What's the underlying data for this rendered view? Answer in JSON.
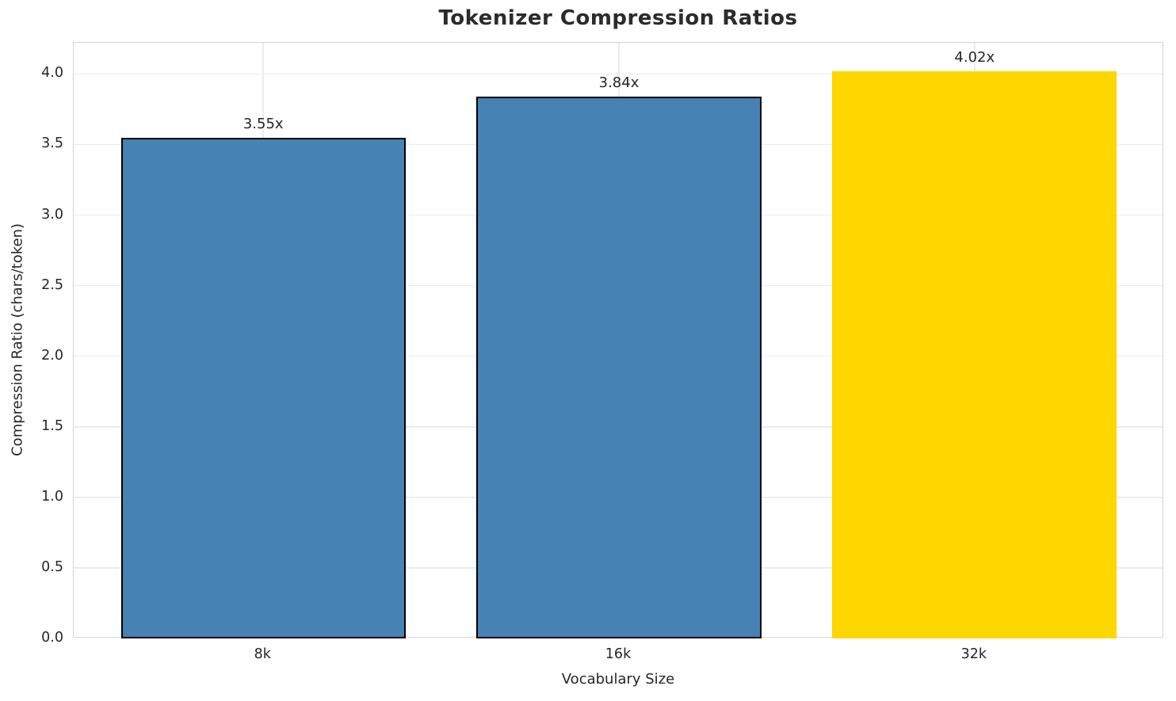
{
  "chart_data": {
    "type": "bar",
    "title": "Tokenizer Compression Ratios",
    "xlabel": "Vocabulary Size",
    "ylabel": "Compression Ratio (chars/token)",
    "categories": [
      "8k",
      "16k",
      "32k"
    ],
    "values": [
      3.55,
      3.84,
      4.02
    ],
    "bar_labels": [
      "3.55x",
      "3.84x",
      "4.02x"
    ],
    "bar_colors": [
      "#4682b4",
      "#4682b4",
      "#ffd700"
    ],
    "bar_edge_colors": [
      "#000000",
      "#000000",
      "none"
    ],
    "ylim": [
      0,
      4.221
    ],
    "yticks": [
      0.0,
      0.5,
      1.0,
      1.5,
      2.0,
      2.5,
      3.0,
      3.5,
      4.0
    ],
    "ytick_labels": [
      "0.0",
      "0.5",
      "1.0",
      "1.5",
      "2.0",
      "2.5",
      "3.0",
      "3.5",
      "4.0"
    ],
    "grid": true,
    "grid_color": "#ececec",
    "spine_color": "#d4d4d4",
    "text_color": "#262626",
    "background_color": "#ffffff",
    "legend": false
  }
}
